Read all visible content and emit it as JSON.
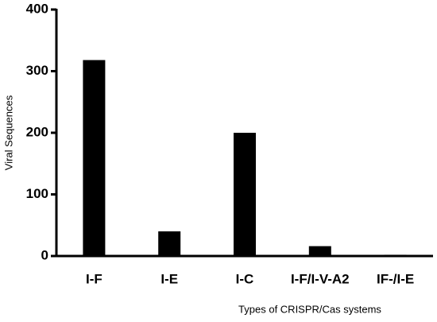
{
  "chart_data": {
    "type": "bar",
    "categories": [
      "I-F",
      "I-E",
      "I-C",
      "I-F/I-V-A2",
      "IF-/I-E"
    ],
    "values": [
      318,
      40,
      200,
      16,
      2
    ],
    "color": "#000000",
    "x_label": "Types of CRISPR/Cas systems",
    "y_label": "Viral Sequences",
    "ylim": [
      0,
      400
    ],
    "yticks": [
      0,
      100,
      200,
      300,
      400
    ],
    "grid": false
  }
}
